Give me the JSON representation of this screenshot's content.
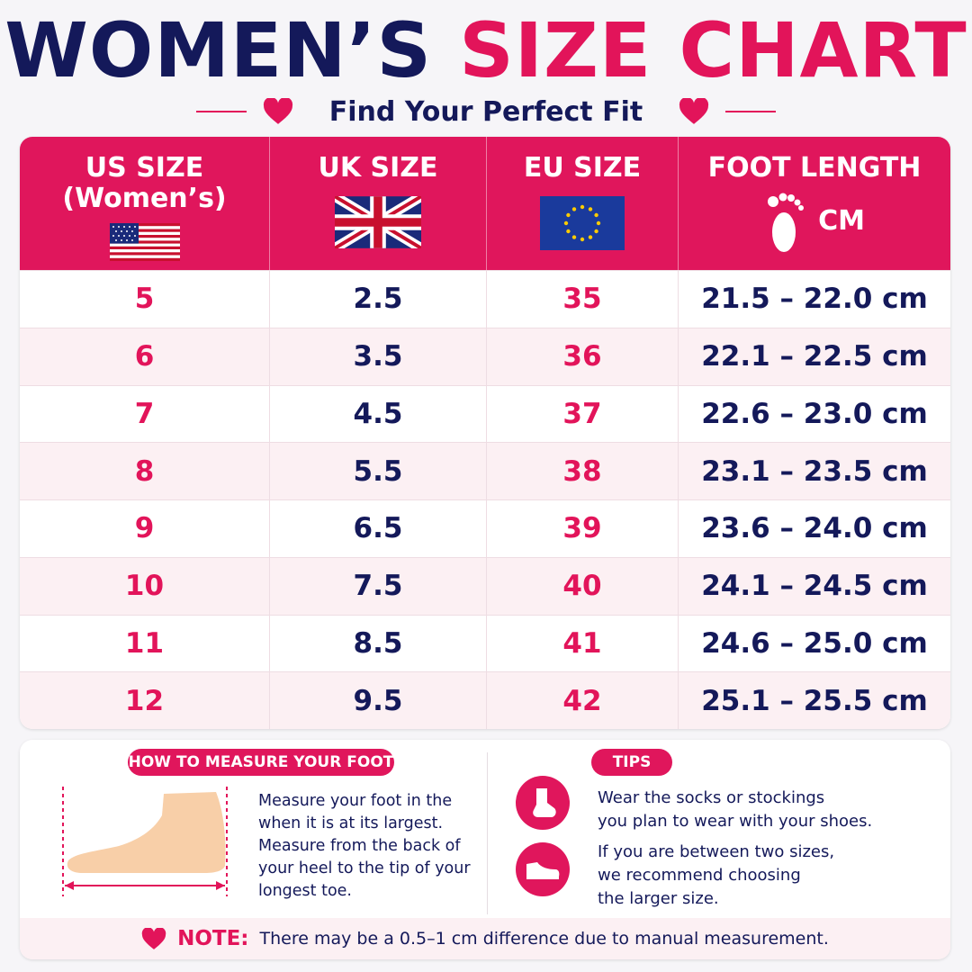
{
  "title": {
    "part1": "WOMEN’S",
    "part2": "SIZE CHART"
  },
  "subtitle": "Find Your Perfect Fit",
  "table": {
    "headers": [
      {
        "line1": "US SIZE",
        "line2": "(Women’s)",
        "icon": "us-flag-icon"
      },
      {
        "line1": "UK SIZE",
        "icon": "uk-flag-icon"
      },
      {
        "line1": "EU SIZE",
        "icon": "eu-flag-icon"
      },
      {
        "line1": "FOOT LENGTH",
        "unit": "CM",
        "icon": "footprint-icon"
      }
    ],
    "rows": [
      [
        "5",
        "2.5",
        "35",
        "21.5 – 22.0 cm"
      ],
      [
        "6",
        "3.5",
        "36",
        "22.1 – 22.5 cm"
      ],
      [
        "7",
        "4.5",
        "37",
        "22.6 – 23.0 cm"
      ],
      [
        "8",
        "5.5",
        "38",
        "23.1 – 23.5 cm"
      ],
      [
        "9",
        "6.5",
        "39",
        "23.6 – 24.0 cm"
      ],
      [
        "10",
        "7.5",
        "40",
        "24.1 – 24.5 cm"
      ],
      [
        "11",
        "8.5",
        "41",
        "24.6 – 25.0 cm"
      ],
      [
        "12",
        "9.5",
        "42",
        "25.1 – 25.5 cm"
      ]
    ]
  },
  "measure": {
    "heading": "HOW TO MEASURE YOUR FOOT",
    "lines": [
      "Measure your foot in the",
      "when it is at its largest.",
      "Measure from the back of",
      "your heel to the tip of your",
      "longest toe."
    ]
  },
  "tips": {
    "heading": "TIPS",
    "items": [
      {
        "icon": "sock-icon",
        "lines": [
          "Wear the socks or stockings",
          "you plan to wear with your shoes."
        ]
      },
      {
        "icon": "shoe-icon",
        "lines": [
          "If you are between two sizes,",
          "we recommend choosing",
          "the larger size."
        ]
      }
    ]
  },
  "note": {
    "label": "NOTE:",
    "text": "There may be a 0.5–1 cm difference due to manual measurement."
  },
  "colors": {
    "navy": "#14195a",
    "pink": "#e2145a",
    "row_alt": "#fcf0f3"
  }
}
